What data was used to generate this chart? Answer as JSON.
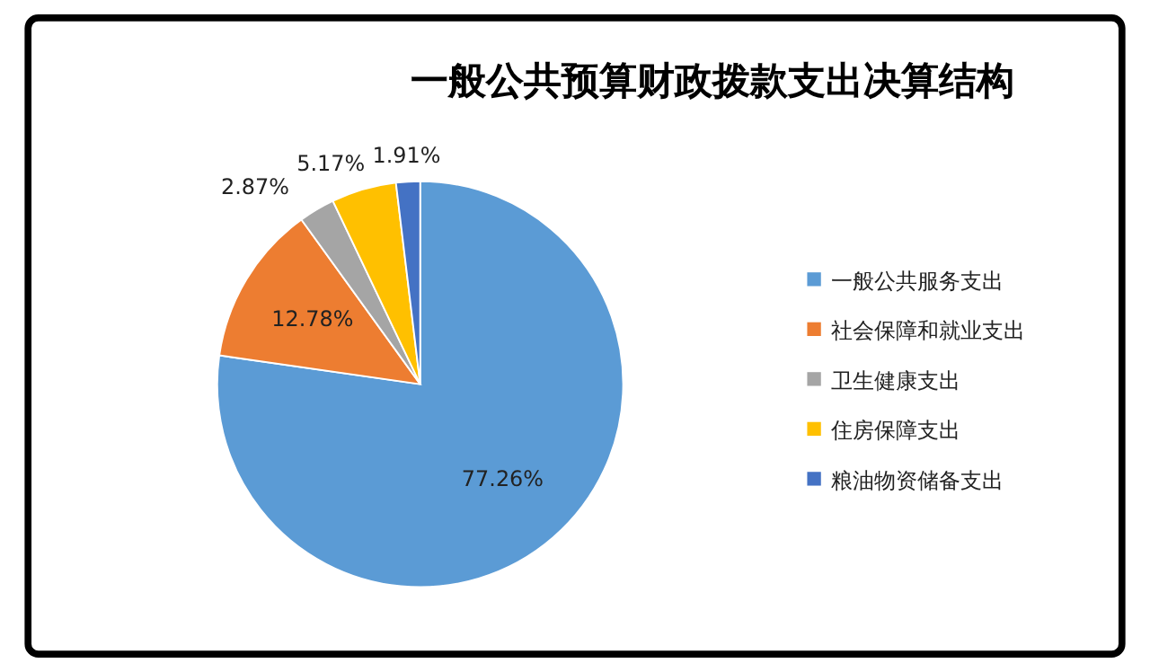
{
  "chart_data": {
    "type": "pie",
    "title": "一般公共预算财政拨款支出决算结构",
    "categories": [
      "一般公共服务支出",
      "社会保障和就业支出",
      "卫生健康支出",
      "住房保障支出",
      "粮油物资储备支出"
    ],
    "values": [
      77.26,
      12.78,
      2.87,
      5.17,
      1.91
    ],
    "colors": [
      "#5b9bd5",
      "#ed7d31",
      "#a5a5a5",
      "#ffc000",
      "#4472c4"
    ],
    "value_labels": [
      "77.26%",
      "12.78%",
      "2.87%",
      "5.17%",
      "1.91%"
    ],
    "legend": "right"
  }
}
